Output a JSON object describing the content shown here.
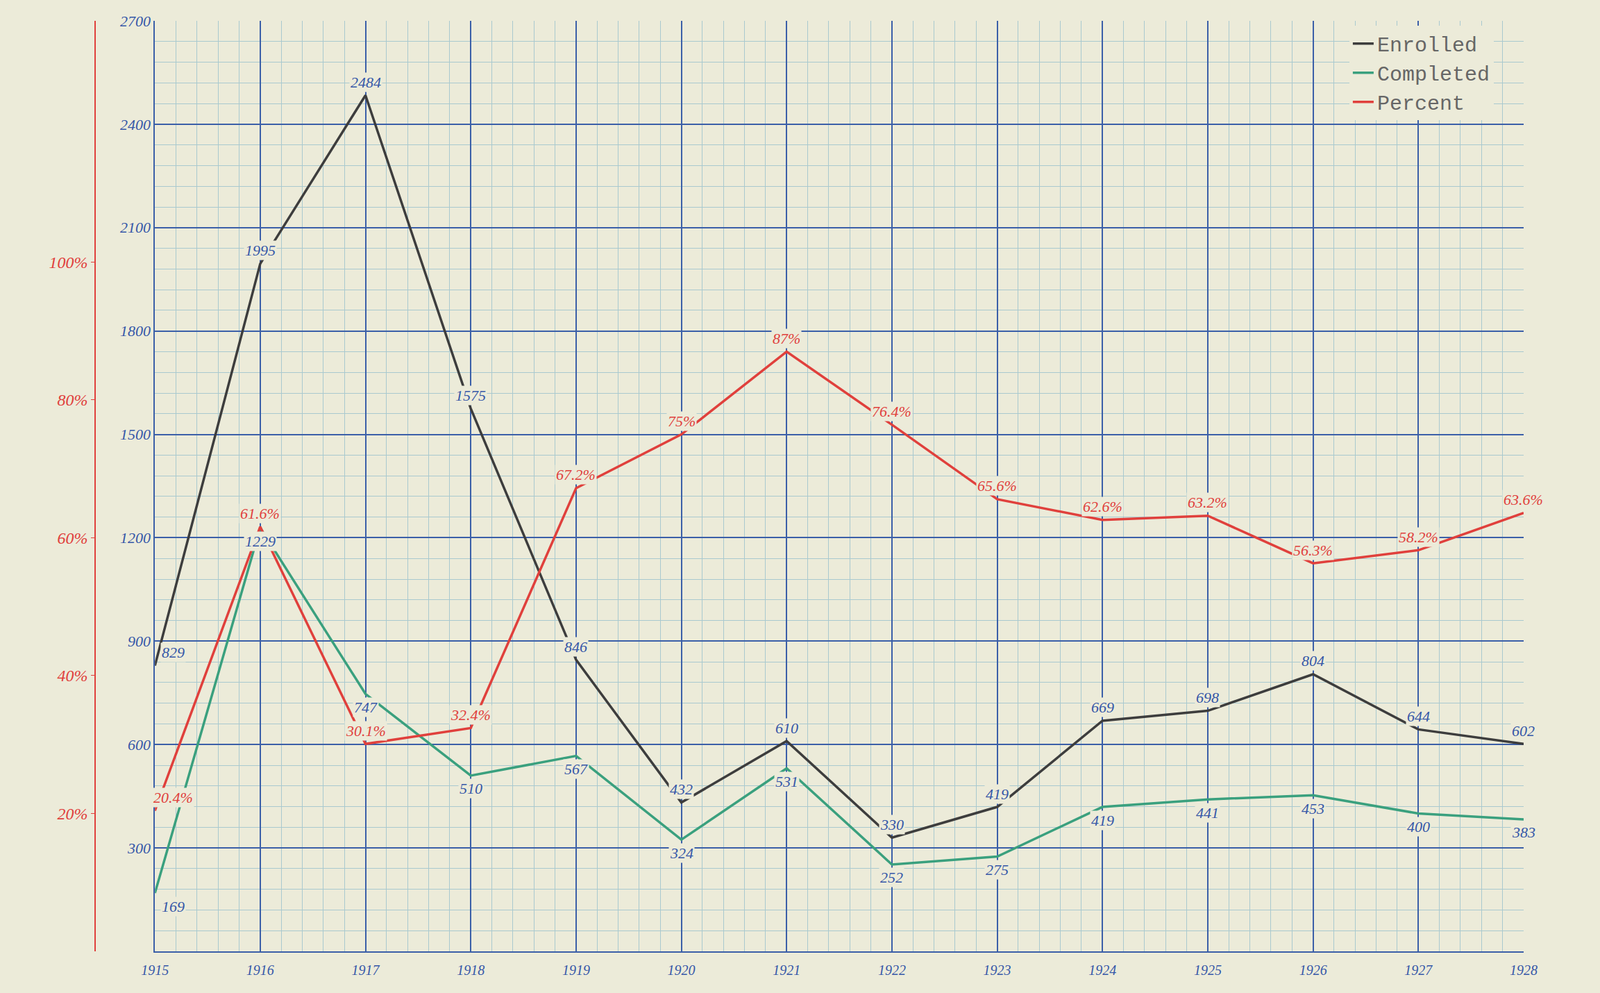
{
  "chart_data": {
    "type": "line",
    "x": [
      1915,
      1916,
      1917,
      1918,
      1919,
      1920,
      1921,
      1922,
      1923,
      1924,
      1925,
      1926,
      1927,
      1928
    ],
    "xlim": [
      1915,
      1928
    ],
    "xticks": [
      1915,
      1916,
      1917,
      1918,
      1919,
      1920,
      1921,
      1922,
      1923,
      1924,
      1925,
      1926,
      1927,
      1928
    ],
    "ylim": [
      0,
      2700
    ],
    "yticks": [
      300,
      600,
      900,
      1200,
      1500,
      1800,
      2100,
      2400,
      2700
    ],
    "y2lim": [
      0,
      135
    ],
    "y2ticks": [
      {
        "value": 20,
        "label": "20%"
      },
      {
        "value": 40,
        "label": "40%"
      },
      {
        "value": 60,
        "label": "60%"
      },
      {
        "value": 80,
        "label": "80%"
      },
      {
        "value": 100,
        "label": "100%"
      }
    ],
    "grid": true,
    "legend": "top right",
    "data_labels": true,
    "series": [
      {
        "name": "Enrolled",
        "color": "#3d3d3d",
        "values": [
          829,
          1995,
          2484,
          1575,
          846,
          432,
          610,
          330,
          419,
          669,
          698,
          804,
          644,
          602
        ]
      },
      {
        "name": "Completed",
        "color": "#3aa07e",
        "values": [
          169,
          1229,
          747,
          510,
          567,
          324,
          531,
          252,
          275,
          419,
          441,
          453,
          400,
          383
        ]
      },
      {
        "name": "Percent",
        "color": "#e0403c",
        "axis": "y2",
        "values": [
          20.4,
          61.6,
          30.1,
          32.4,
          67.2,
          75,
          87,
          76.4,
          65.6,
          62.6,
          63.2,
          56.3,
          58.2,
          63.6
        ],
        "value_labels": [
          "20.4%",
          "61.6%",
          "30.1%",
          "32.4%",
          "67.2%",
          "75%",
          "87%",
          "76.4%",
          "65.6%",
          "62.6%",
          "63.2%",
          "56.3%",
          "58.2%",
          "63.6%"
        ]
      }
    ]
  }
}
